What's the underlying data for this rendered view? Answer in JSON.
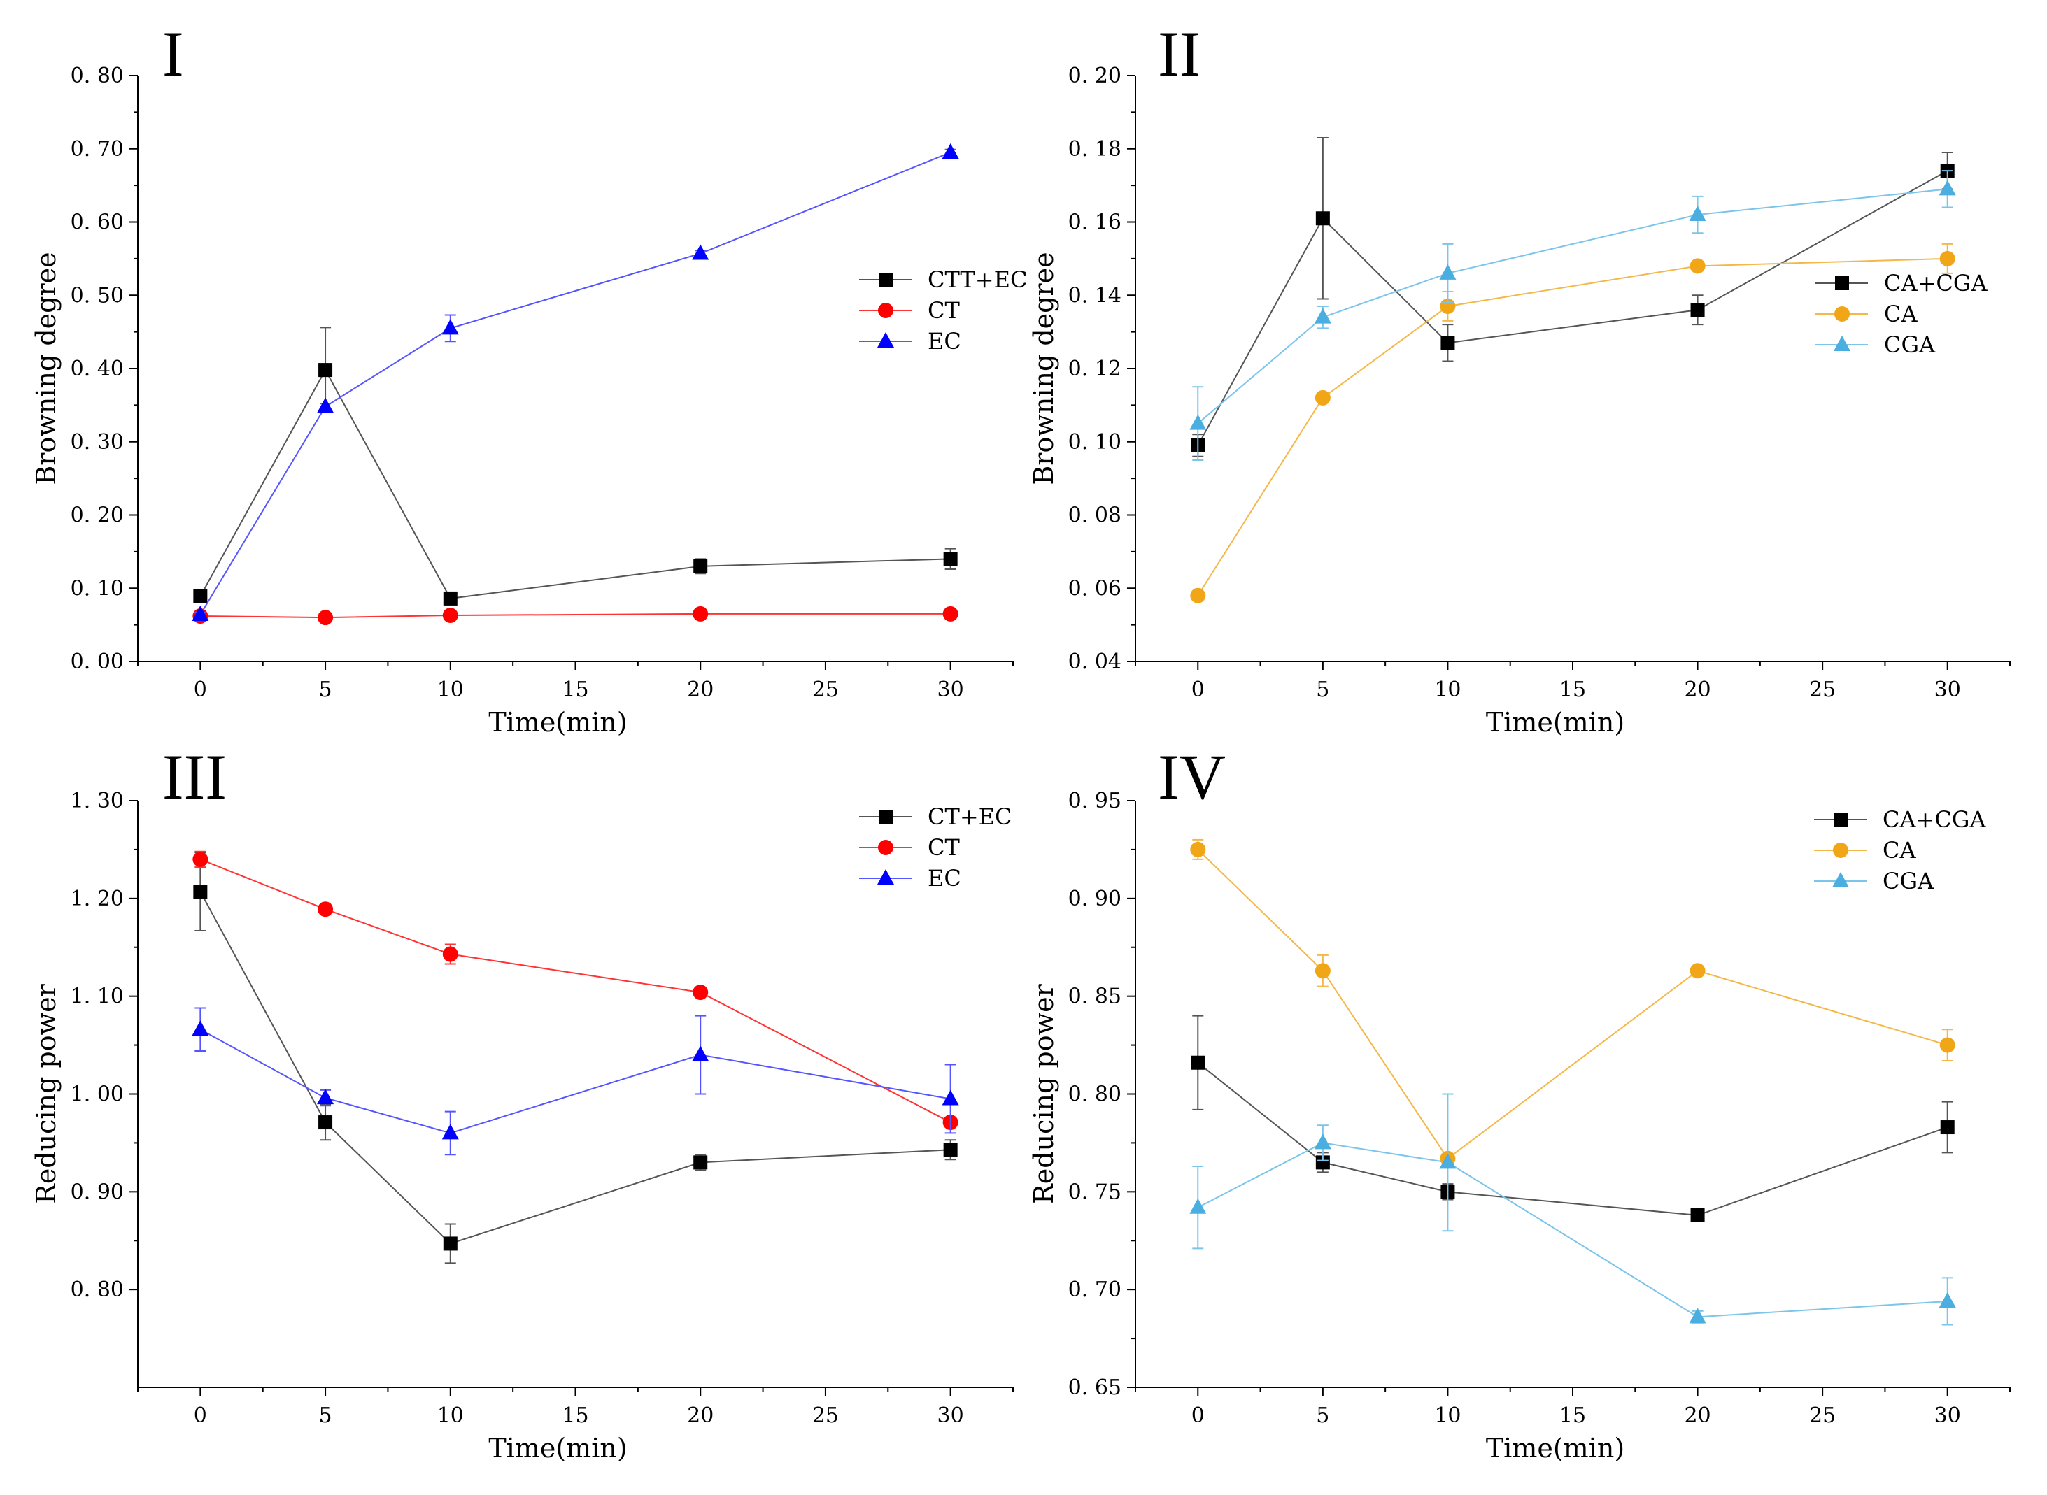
{
  "figure": {
    "panel_count": 4
  },
  "chart_data": [
    {
      "type": "line",
      "panel_label": "I",
      "xlabel": "Time(min)",
      "ylabel": "Browning degree",
      "xlim": [
        -2.5,
        32.5
      ],
      "ylim": [
        0,
        0.8
      ],
      "xticks": [
        0,
        5,
        10,
        15,
        20,
        25,
        30
      ],
      "yticks": [
        0,
        0.1,
        0.2,
        0.3,
        0.4,
        0.5,
        0.6,
        0.7,
        0.8
      ],
      "yformat": "0.00",
      "legend_position": "right-middle",
      "x": [
        0,
        5,
        10,
        20,
        30
      ],
      "series": [
        {
          "name": "CTT+EC",
          "marker": "square",
          "color": "#000000",
          "line_color": "#555555",
          "values": [
            0.089,
            0.398,
            0.086,
            0.13,
            0.14
          ],
          "errors": [
            0.005,
            0.058,
            0.005,
            0.01,
            0.014
          ]
        },
        {
          "name": "CT",
          "marker": "circle",
          "color": "#ff0000",
          "line_color": "#ff3333",
          "values": [
            0.062,
            0.06,
            0.063,
            0.065,
            0.065
          ],
          "errors": [
            0.003,
            0.002,
            0.002,
            0.002,
            0.002
          ]
        },
        {
          "name": "EC",
          "marker": "triangle",
          "color": "#0000ff",
          "line_color": "#5555ff",
          "values": [
            0.064,
            0.348,
            0.455,
            0.557,
            0.695
          ],
          "errors": [
            0.003,
            0.004,
            0.018,
            0.004,
            0.004
          ]
        }
      ]
    },
    {
      "type": "line",
      "panel_label": "II",
      "xlabel": "Time(min)",
      "ylabel": "Browning degree",
      "xlim": [
        -2.5,
        32.5
      ],
      "ylim": [
        0.04,
        0.2
      ],
      "xticks": [
        0,
        5,
        10,
        15,
        20,
        25,
        30
      ],
      "yticks": [
        0.04,
        0.06,
        0.08,
        0.1,
        0.12,
        0.14,
        0.16,
        0.18,
        0.2
      ],
      "yformat": "0.00",
      "legend_position": "right-middle",
      "x": [
        0,
        5,
        10,
        20,
        30
      ],
      "series": [
        {
          "name": "CA+CGA",
          "marker": "square",
          "color": "#000000",
          "line_color": "#555555",
          "values": [
            0.099,
            0.161,
            0.127,
            0.136,
            0.174
          ],
          "errors": [
            0.003,
            0.022,
            0.005,
            0.004,
            0.005
          ]
        },
        {
          "name": "CA",
          "marker": "circle",
          "color": "#f0a616",
          "line_color": "#f4b84a",
          "values": [
            0.058,
            0.112,
            0.137,
            0.148,
            0.15
          ],
          "errors": [
            0.001,
            0.001,
            0.004,
            0.001,
            0.004
          ]
        },
        {
          "name": "CGA",
          "marker": "triangle",
          "color": "#4aaee0",
          "line_color": "#7cc4ea",
          "values": [
            0.105,
            0.134,
            0.146,
            0.162,
            0.169
          ],
          "errors": [
            0.01,
            0.003,
            0.008,
            0.005,
            0.005
          ]
        }
      ]
    },
    {
      "type": "line",
      "panel_label": "III",
      "xlabel": "Time(min)",
      "ylabel": "Reducing power",
      "xlim": [
        -2.5,
        32.5
      ],
      "ylim": [
        0.7,
        1.3
      ],
      "xticks": [
        0,
        5,
        10,
        15,
        20,
        25,
        30
      ],
      "yticks": [
        0.8,
        0.9,
        1.0,
        1.1,
        1.2,
        1.3
      ],
      "yformat": "0.00",
      "legend_position": "top-right",
      "x": [
        0,
        5,
        10,
        20,
        30
      ],
      "series": [
        {
          "name": "CT+EC",
          "marker": "square",
          "color": "#000000",
          "line_color": "#555555",
          "values": [
            1.207,
            0.971,
            0.847,
            0.93,
            0.943
          ],
          "errors": [
            0.04,
            0.018,
            0.02,
            0.008,
            0.01
          ]
        },
        {
          "name": "CT",
          "marker": "circle",
          "color": "#ff0000",
          "line_color": "#ff3333",
          "values": [
            1.24,
            1.189,
            1.143,
            1.104,
            0.971
          ],
          "errors": [
            0.008,
            0.005,
            0.01,
            0.004,
            0.005
          ]
        },
        {
          "name": "EC",
          "marker": "triangle",
          "color": "#0000ff",
          "line_color": "#5555ff",
          "values": [
            1.066,
            0.996,
            0.96,
            1.04,
            0.995
          ],
          "errors": [
            0.022,
            0.008,
            0.022,
            0.04,
            0.035
          ]
        }
      ]
    },
    {
      "type": "line",
      "panel_label": "IV",
      "xlabel": "Time(min)",
      "ylabel": "Reducing power",
      "xlim": [
        -2.5,
        32.5
      ],
      "ylim": [
        0.65,
        0.95
      ],
      "xticks": [
        0,
        5,
        10,
        15,
        20,
        25,
        30
      ],
      "yticks": [
        0.65,
        0.7,
        0.75,
        0.8,
        0.85,
        0.9,
        0.95
      ],
      "yformat": "0.00",
      "legend_position": "top-right",
      "x": [
        0,
        5,
        10,
        20,
        30
      ],
      "series": [
        {
          "name": "CA+CGA",
          "marker": "square",
          "color": "#000000",
          "line_color": "#555555",
          "values": [
            0.816,
            0.765,
            0.75,
            0.738,
            0.783
          ],
          "errors": [
            0.024,
            0.005,
            0.004,
            0.002,
            0.013
          ]
        },
        {
          "name": "CA",
          "marker": "circle",
          "color": "#f0a616",
          "line_color": "#f4b84a",
          "values": [
            0.925,
            0.863,
            0.767,
            0.863,
            0.825
          ],
          "errors": [
            0.005,
            0.008,
            0.002,
            0.002,
            0.008
          ]
        },
        {
          "name": "CGA",
          "marker": "triangle",
          "color": "#4aaee0",
          "line_color": "#7cc4ea",
          "values": [
            0.742,
            0.775,
            0.765,
            0.686,
            0.694
          ],
          "errors": [
            0.021,
            0.009,
            0.035,
            0.003,
            0.012
          ]
        }
      ]
    }
  ]
}
